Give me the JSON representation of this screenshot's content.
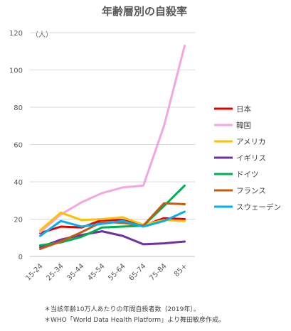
{
  "chart_data": {
    "type": "line",
    "title": "年齢層別の自殺率",
    "ylabel": "（人）",
    "xlabel": "",
    "ylim": [
      0,
      120
    ],
    "yticks": [
      0,
      20,
      40,
      60,
      80,
      100,
      120
    ],
    "grid": true,
    "legend_position": "right",
    "categories": [
      "15-24",
      "25-34",
      "35-44",
      "45-54",
      "55-64",
      "65-74",
      "75-84",
      "85+"
    ],
    "series": [
      {
        "name": "日本",
        "color": "#e00000",
        "values": [
          12.5,
          16.0,
          15.5,
          19.5,
          19.5,
          16.5,
          20.5,
          20.0
        ]
      },
      {
        "name": "韓国",
        "color": "#f4a6e1",
        "values": [
          13.0,
          22.5,
          29.0,
          34.0,
          37.0,
          38.0,
          70.0,
          113.0
        ]
      },
      {
        "name": "アメリカ",
        "color": "#ffc000",
        "values": [
          14.0,
          23.5,
          19.5,
          20.0,
          21.0,
          17.0,
          19.5,
          19.0
        ]
      },
      {
        "name": "イギリス",
        "color": "#7030a0",
        "values": [
          5.0,
          9.0,
          11.5,
          13.5,
          11.0,
          6.5,
          7.0,
          8.0
        ]
      },
      {
        "name": "ドイツ",
        "color": "#00b050",
        "values": [
          6.0,
          7.5,
          10.5,
          15.5,
          16.0,
          16.5,
          27.0,
          38.0
        ]
      },
      {
        "name": "フランス",
        "color": "#c55a11",
        "values": [
          4.0,
          8.0,
          13.0,
          18.5,
          18.0,
          16.5,
          28.5,
          28.0
        ]
      },
      {
        "name": "スウェーデン",
        "color": "#00b0f0",
        "values": [
          11.0,
          19.0,
          16.0,
          17.5,
          19.0,
          16.0,
          19.0,
          24.0
        ]
      }
    ]
  },
  "notes": [
    "＊当該年齢10万人あたりの年間自殺者数（2019年）。",
    "＊WHO「World Data Health Platform」より舞田敏彦作成。"
  ]
}
